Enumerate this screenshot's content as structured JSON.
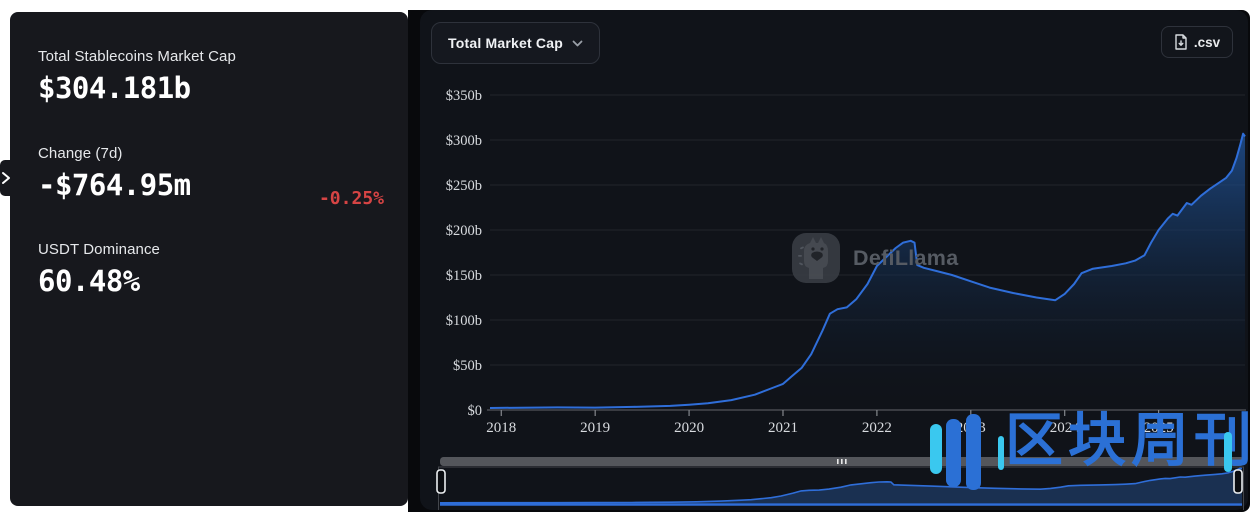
{
  "left_panel": {
    "collapse_icon": "chevron-right",
    "metrics": [
      {
        "label": "Total Stablecoins Market Cap",
        "value": "$304.181b"
      },
      {
        "label": "Change (7d)",
        "value": "-$764.95m",
        "delta": "-0.25%"
      },
      {
        "label": "USDT Dominance",
        "value": "60.48%"
      }
    ]
  },
  "toolbar": {
    "series_selector_label": "Total Market Cap",
    "csv_label": ".csv"
  },
  "watermarks": {
    "defillama_text": "DefiLlama",
    "cn_text": "区块周刊"
  },
  "colors": {
    "line": "#2f6ed9",
    "delta_negative": "#d64444",
    "accent_cyan": "#3ac8ef",
    "watermark_blue": "#2b70d5",
    "axis_text": "#d8dbdf"
  },
  "chart_data": {
    "type": "area",
    "title": "Total Market Cap",
    "unit": "USD billions",
    "ylim": [
      0,
      350
    ],
    "ytick_step": 50,
    "ytick_labels": [
      "$0",
      "$50b",
      "$100b",
      "$150b",
      "$200b",
      "$250b",
      "$300b",
      "$350b"
    ],
    "xtick_labels": [
      "2018",
      "2019",
      "2020",
      "2021",
      "2022",
      "2023",
      "2024",
      "2025"
    ],
    "xtick_years": [
      2018,
      2019,
      2020,
      2021,
      2022,
      2023,
      2024,
      2025
    ],
    "x_range": [
      2017.88,
      2025.92
    ],
    "grid": true,
    "legend": false,
    "points": [
      [
        2017.88,
        2.2
      ],
      [
        2018.2,
        2.6
      ],
      [
        2018.6,
        2.9
      ],
      [
        2019.0,
        2.7
      ],
      [
        2019.4,
        3.4
      ],
      [
        2019.8,
        4.6
      ],
      [
        2020.0,
        5.8
      ],
      [
        2020.2,
        7.5
      ],
      [
        2020.45,
        11
      ],
      [
        2020.7,
        17
      ],
      [
        2020.9,
        25
      ],
      [
        2021.0,
        29
      ],
      [
        2021.1,
        38
      ],
      [
        2021.2,
        47
      ],
      [
        2021.3,
        62
      ],
      [
        2021.42,
        88
      ],
      [
        2021.5,
        107
      ],
      [
        2021.58,
        112
      ],
      [
        2021.68,
        114
      ],
      [
        2021.78,
        123
      ],
      [
        2021.9,
        140
      ],
      [
        2022.0,
        160
      ],
      [
        2022.1,
        170
      ],
      [
        2022.2,
        180
      ],
      [
        2022.28,
        186
      ],
      [
        2022.36,
        188
      ],
      [
        2022.4,
        186
      ],
      [
        2022.43,
        161
      ],
      [
        2022.5,
        158
      ],
      [
        2022.65,
        154
      ],
      [
        2022.8,
        150
      ],
      [
        2023.0,
        143
      ],
      [
        2023.2,
        136
      ],
      [
        2023.45,
        130
      ],
      [
        2023.7,
        125
      ],
      [
        2023.9,
        122
      ],
      [
        2024.0,
        129
      ],
      [
        2024.1,
        140
      ],
      [
        2024.18,
        152
      ],
      [
        2024.3,
        157
      ],
      [
        2024.5,
        160
      ],
      [
        2024.65,
        163
      ],
      [
        2024.75,
        166
      ],
      [
        2024.85,
        172
      ],
      [
        2024.92,
        186
      ],
      [
        2025.0,
        200
      ],
      [
        2025.1,
        213
      ],
      [
        2025.15,
        218
      ],
      [
        2025.2,
        216
      ],
      [
        2025.3,
        230
      ],
      [
        2025.35,
        228
      ],
      [
        2025.45,
        238
      ],
      [
        2025.55,
        246
      ],
      [
        2025.65,
        253
      ],
      [
        2025.72,
        258
      ],
      [
        2025.78,
        266
      ],
      [
        2025.83,
        280
      ],
      [
        2025.87,
        295
      ],
      [
        2025.9,
        307
      ],
      [
        2025.92,
        304
      ]
    ]
  }
}
